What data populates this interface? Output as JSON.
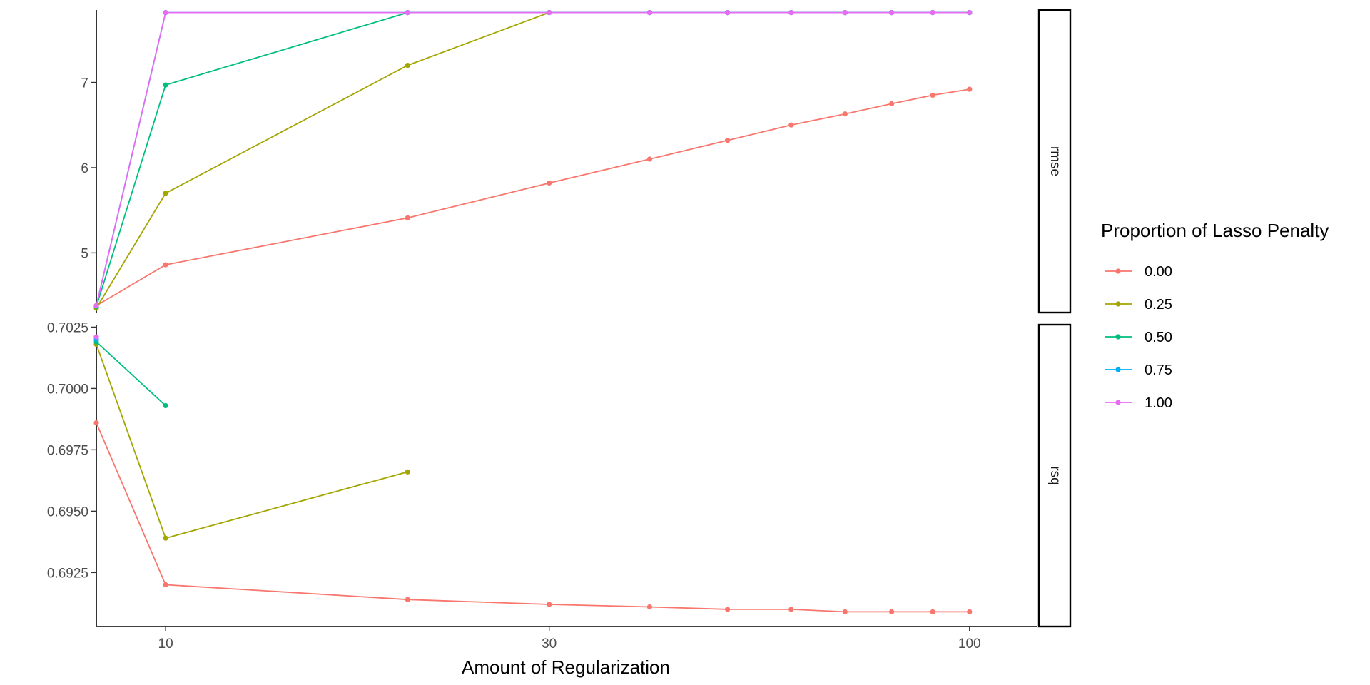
{
  "chart_data": {
    "type": "line",
    "xlabel": "Amount of Regularization",
    "x_scale": "log10",
    "xlim": [
      8.2,
      120
    ],
    "x_ticks": [
      10,
      30,
      100
    ],
    "x_tick_labels": [
      "10",
      "30",
      "100"
    ],
    "x": [
      8.2,
      10,
      20,
      30,
      40,
      50,
      60,
      70,
      80,
      90,
      100
    ],
    "legend": {
      "title": "Proportion of Lasso Penalty",
      "position": "right",
      "entries": [
        "0.00",
        "0.25",
        "0.50",
        "0.75",
        "1.00"
      ]
    },
    "grid": false,
    "panels": [
      {
        "strip": "rmse",
        "ylim": [
          4.3,
          7.85
        ],
        "y_ticks": [
          5,
          6,
          7
        ],
        "y_tick_labels": [
          "5",
          "6",
          "7"
        ],
        "series": [
          {
            "name": "0.00",
            "color": "#F8766D",
            "values": [
              4.38,
              4.86,
              5.41,
              5.82,
              6.1,
              6.32,
              6.5,
              6.63,
              6.75,
              6.85,
              6.92
            ]
          },
          {
            "name": "0.25",
            "color": "#A3A500",
            "values": [
              4.35,
              5.7,
              7.2,
              7.82,
              7.82,
              7.82,
              7.82,
              7.82,
              7.82,
              7.82,
              7.82
            ]
          },
          {
            "name": "0.50",
            "color": "#00BF7D",
            "values": [
              4.37,
              6.97,
              7.82,
              7.82,
              7.82,
              7.82,
              7.82,
              7.82,
              7.82,
              7.82,
              7.82
            ]
          },
          {
            "name": "0.75",
            "color": "#00B0F6",
            "values": [
              4.38,
              7.82,
              7.82,
              7.82,
              7.82,
              7.82,
              7.82,
              7.82,
              7.82,
              7.82,
              7.82
            ]
          },
          {
            "name": "1.00",
            "color": "#E76BF3",
            "values": [
              4.38,
              7.82,
              7.82,
              7.82,
              7.82,
              7.82,
              7.82,
              7.82,
              7.82,
              7.82,
              7.82
            ]
          }
        ]
      },
      {
        "strip": "rsq",
        "ylim": [
          0.6903,
          0.7026
        ],
        "y_ticks": [
          0.6925,
          0.695,
          0.6975,
          0.7,
          0.7025
        ],
        "y_tick_labels": [
          "0.6925",
          "0.6950",
          "0.6975",
          "0.7000",
          "0.7025"
        ],
        "series": [
          {
            "name": "0.00",
            "color": "#F8766D",
            "values": [
              0.6986,
              0.692,
              0.6914,
              0.6912,
              0.6911,
              0.691,
              0.691,
              0.6909,
              0.6909,
              0.6909,
              0.6909
            ]
          },
          {
            "name": "0.25",
            "color": "#A3A500",
            "values": [
              0.7018,
              0.6939,
              0.6966,
              null,
              null,
              null,
              null,
              null,
              null,
              null,
              null
            ]
          },
          {
            "name": "0.50",
            "color": "#00BF7D",
            "values": [
              0.7019,
              0.6993,
              null,
              null,
              null,
              null,
              null,
              null,
              null,
              null,
              null
            ]
          },
          {
            "name": "0.75",
            "color": "#00B0F6",
            "values": [
              0.702,
              null,
              null,
              null,
              null,
              null,
              null,
              null,
              null,
              null,
              null
            ]
          },
          {
            "name": "1.00",
            "color": "#E76BF3",
            "values": [
              0.7021,
              null,
              null,
              null,
              null,
              null,
              null,
              null,
              null,
              null,
              null
            ]
          }
        ]
      }
    ]
  }
}
